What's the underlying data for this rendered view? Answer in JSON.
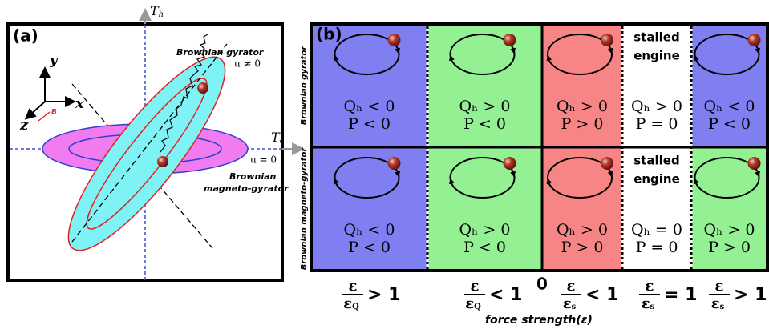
{
  "panel_a": {
    "label": "(a)",
    "axis_th": {
      "symbol": "T",
      "sub": "h"
    },
    "axis_tc": {
      "symbol": "T",
      "sub": "c"
    },
    "triad": {
      "y": "y",
      "x": "x",
      "z": "z",
      "field": "B"
    },
    "gyrator": {
      "name": "Brownian gyrator",
      "condition": "u ≠ 0"
    },
    "magneto_gyrator": {
      "name": [
        "Brownian",
        "magneto-gyrator"
      ],
      "condition": "u = 0"
    }
  },
  "panel_b": {
    "label": "(b)",
    "rows": [
      {
        "name": "Brownian gyrator",
        "cells": [
          {
            "color": "#7f7ff2",
            "heat": "Qₕ < 0",
            "power": "P < 0"
          },
          {
            "color": "#93f193",
            "heat": "Qₕ > 0",
            "power": "P < 0"
          },
          {
            "color": "#f78585",
            "heat": "Qₕ > 0",
            "power": "P > 0"
          },
          {
            "color": "#ffffff",
            "status": [
              "stalled",
              "engine"
            ],
            "heat": "Qₕ > 0",
            "power": "P = 0"
          },
          {
            "color": "#7f7ff2",
            "heat": "Qₕ < 0",
            "power": "P < 0"
          }
        ]
      },
      {
        "name": "Brownian magneto-gyrator",
        "cells": [
          {
            "color": "#7f7ff2",
            "heat": "Qₕ < 0",
            "power": "P < 0"
          },
          {
            "color": "#93f193",
            "heat": "Qₕ > 0",
            "power": "P < 0"
          },
          {
            "color": "#f78585",
            "heat": "Qₕ > 0",
            "power": "P > 0"
          },
          {
            "color": "#ffffff",
            "status": [
              "stalled",
              "engine"
            ],
            "heat": "Qₕ = 0",
            "power": "P = 0"
          },
          {
            "color": "#93f193",
            "heat": "Qₕ > 0",
            "power": "P > 0"
          }
        ]
      }
    ],
    "regimes": [
      {
        "num": "ε",
        "den": "ε",
        "den_sub": "Q",
        "relation": "> 1"
      },
      {
        "num": "ε",
        "den": "ε",
        "den_sub": "Q",
        "relation": "< 1"
      },
      {
        "num": "ε",
        "den": "ε",
        "den_sub": "s",
        "relation": "< 1"
      },
      {
        "num": "ε",
        "den": "ε",
        "den_sub": "s",
        "relation": "= 1"
      },
      {
        "num": "ε",
        "den": "ε",
        "den_sub": "s",
        "relation": "> 1"
      }
    ],
    "origin": "0",
    "axis_title": "force strength(ε)"
  }
}
